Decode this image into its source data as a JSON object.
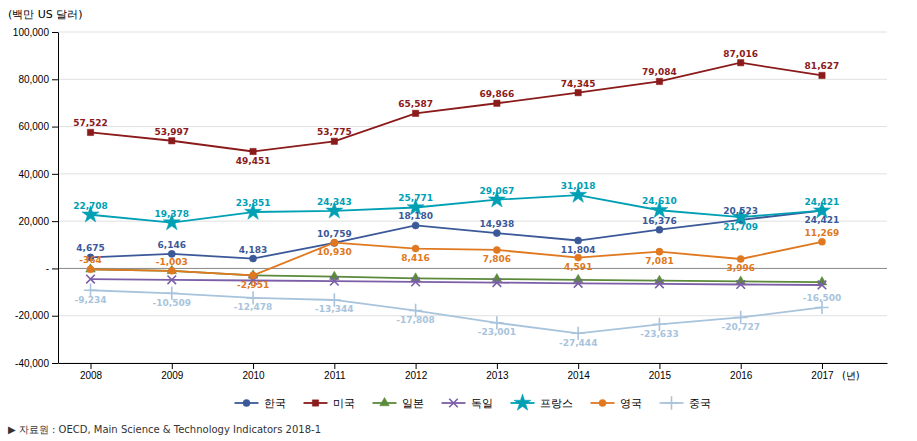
{
  "chart_data": {
    "type": "line",
    "ylabel": "(백만 US 달러)",
    "xlabel": "(년)",
    "x": [
      2008,
      2009,
      2010,
      2011,
      2012,
      2013,
      2014,
      2015,
      2016,
      2017
    ],
    "xlim": [
      2007.6,
      2017.8
    ],
    "xticks": [
      2008,
      2009,
      2010,
      2011,
      2012,
      2013,
      2014,
      2015,
      2016,
      2017
    ],
    "ylim": [
      -40000,
      100000
    ],
    "yticks": [
      {
        "value": -40000,
        "label": "-40,000"
      },
      {
        "value": -20000,
        "label": "-20,000"
      },
      {
        "value": 0,
        "label": "-"
      },
      {
        "value": 20000,
        "label": "20,000"
      },
      {
        "value": 40000,
        "label": "40,000"
      },
      {
        "value": 60000,
        "label": "60,000"
      },
      {
        "value": 80000,
        "label": "80,000"
      },
      {
        "value": 100000,
        "label": "100,000"
      }
    ],
    "grid": true,
    "legend": "bottom",
    "series": [
      {
        "name": "한국",
        "color": "#3b5998",
        "marker": "circle",
        "line_style": "solid",
        "values": [
          4675,
          6146,
          4183,
          10759,
          18180,
          14938,
          11804,
          16376,
          20523,
          24421
        ],
        "data_labels": true,
        "value_labels": [
          "4,675",
          "6,146",
          "4,183",
          "10,759",
          "18,180",
          "14,938",
          "11,804",
          "16,376",
          "20,523",
          "24,421"
        ]
      },
      {
        "name": "미국",
        "color": "#8b1a1a",
        "marker": "square",
        "line_style": "solid",
        "values": [
          57522,
          53997,
          49451,
          53775,
          65587,
          69866,
          74345,
          79084,
          87016,
          81627
        ],
        "data_labels": true,
        "value_labels": [
          "57,522",
          "53,997",
          "49,451",
          "53,775",
          "65,587",
          "69,866",
          "74,345",
          "79,084",
          "87,016",
          "81,627"
        ]
      },
      {
        "name": "일본",
        "color": "#5a8a3a",
        "marker": "triangle",
        "line_style": "solid",
        "values": [
          -364,
          -1003,
          -2951,
          -3500,
          -4200,
          -4500,
          -4800,
          -5200,
          -5500,
          -5800
        ],
        "data_labels": false
      },
      {
        "name": "독일",
        "color": "#7b5ea7",
        "marker": "x",
        "line_style": "solid",
        "values": [
          -4500,
          -4800,
          -5100,
          -5400,
          -5700,
          -6000,
          -6300,
          -6500,
          -6800,
          -7000
        ],
        "data_labels": false
      },
      {
        "name": "프랑스",
        "color": "#00a0b4",
        "marker": "star",
        "line_style": "solid",
        "values": [
          22708,
          19378,
          23851,
          24343,
          25771,
          29067,
          31018,
          24610,
          21709,
          24421
        ],
        "data_labels": true,
        "value_labels": [
          "22,708",
          "19,378",
          "23,851",
          "24,343",
          "25,771",
          "29,067",
          "31,018",
          "24,610",
          "21,709",
          "24,421"
        ]
      },
      {
        "name": "영국",
        "color": "#e07820",
        "marker": "circle",
        "line_style": "solid",
        "values": [
          -364,
          -1003,
          -2951,
          10930,
          8416,
          7806,
          4591,
          7081,
          3996,
          11269
        ],
        "data_labels": true,
        "value_labels": [
          "-364",
          "-1,003",
          "-2,951",
          "10,930",
          "8,416",
          "7,806",
          "4,591",
          "7,081",
          "3,996",
          "11,269"
        ]
      },
      {
        "name": "중국",
        "color": "#a8c4dc",
        "marker": "plus",
        "line_style": "solid",
        "values": [
          -9234,
          -10509,
          -12478,
          -13344,
          -17808,
          -23001,
          -27444,
          -23633,
          -20727,
          -16500
        ],
        "data_labels": true,
        "value_labels": [
          "-9,234",
          "-10,509",
          "-12,478",
          "-13,344",
          "-17,808",
          "-23,001",
          "-27,444",
          "-23,633",
          "-20,727",
          "-16,500"
        ]
      }
    ],
    "annotations": [
      "▶ 자료원 : OECD, Main Science & Technology Indicators 2018-1"
    ]
  }
}
